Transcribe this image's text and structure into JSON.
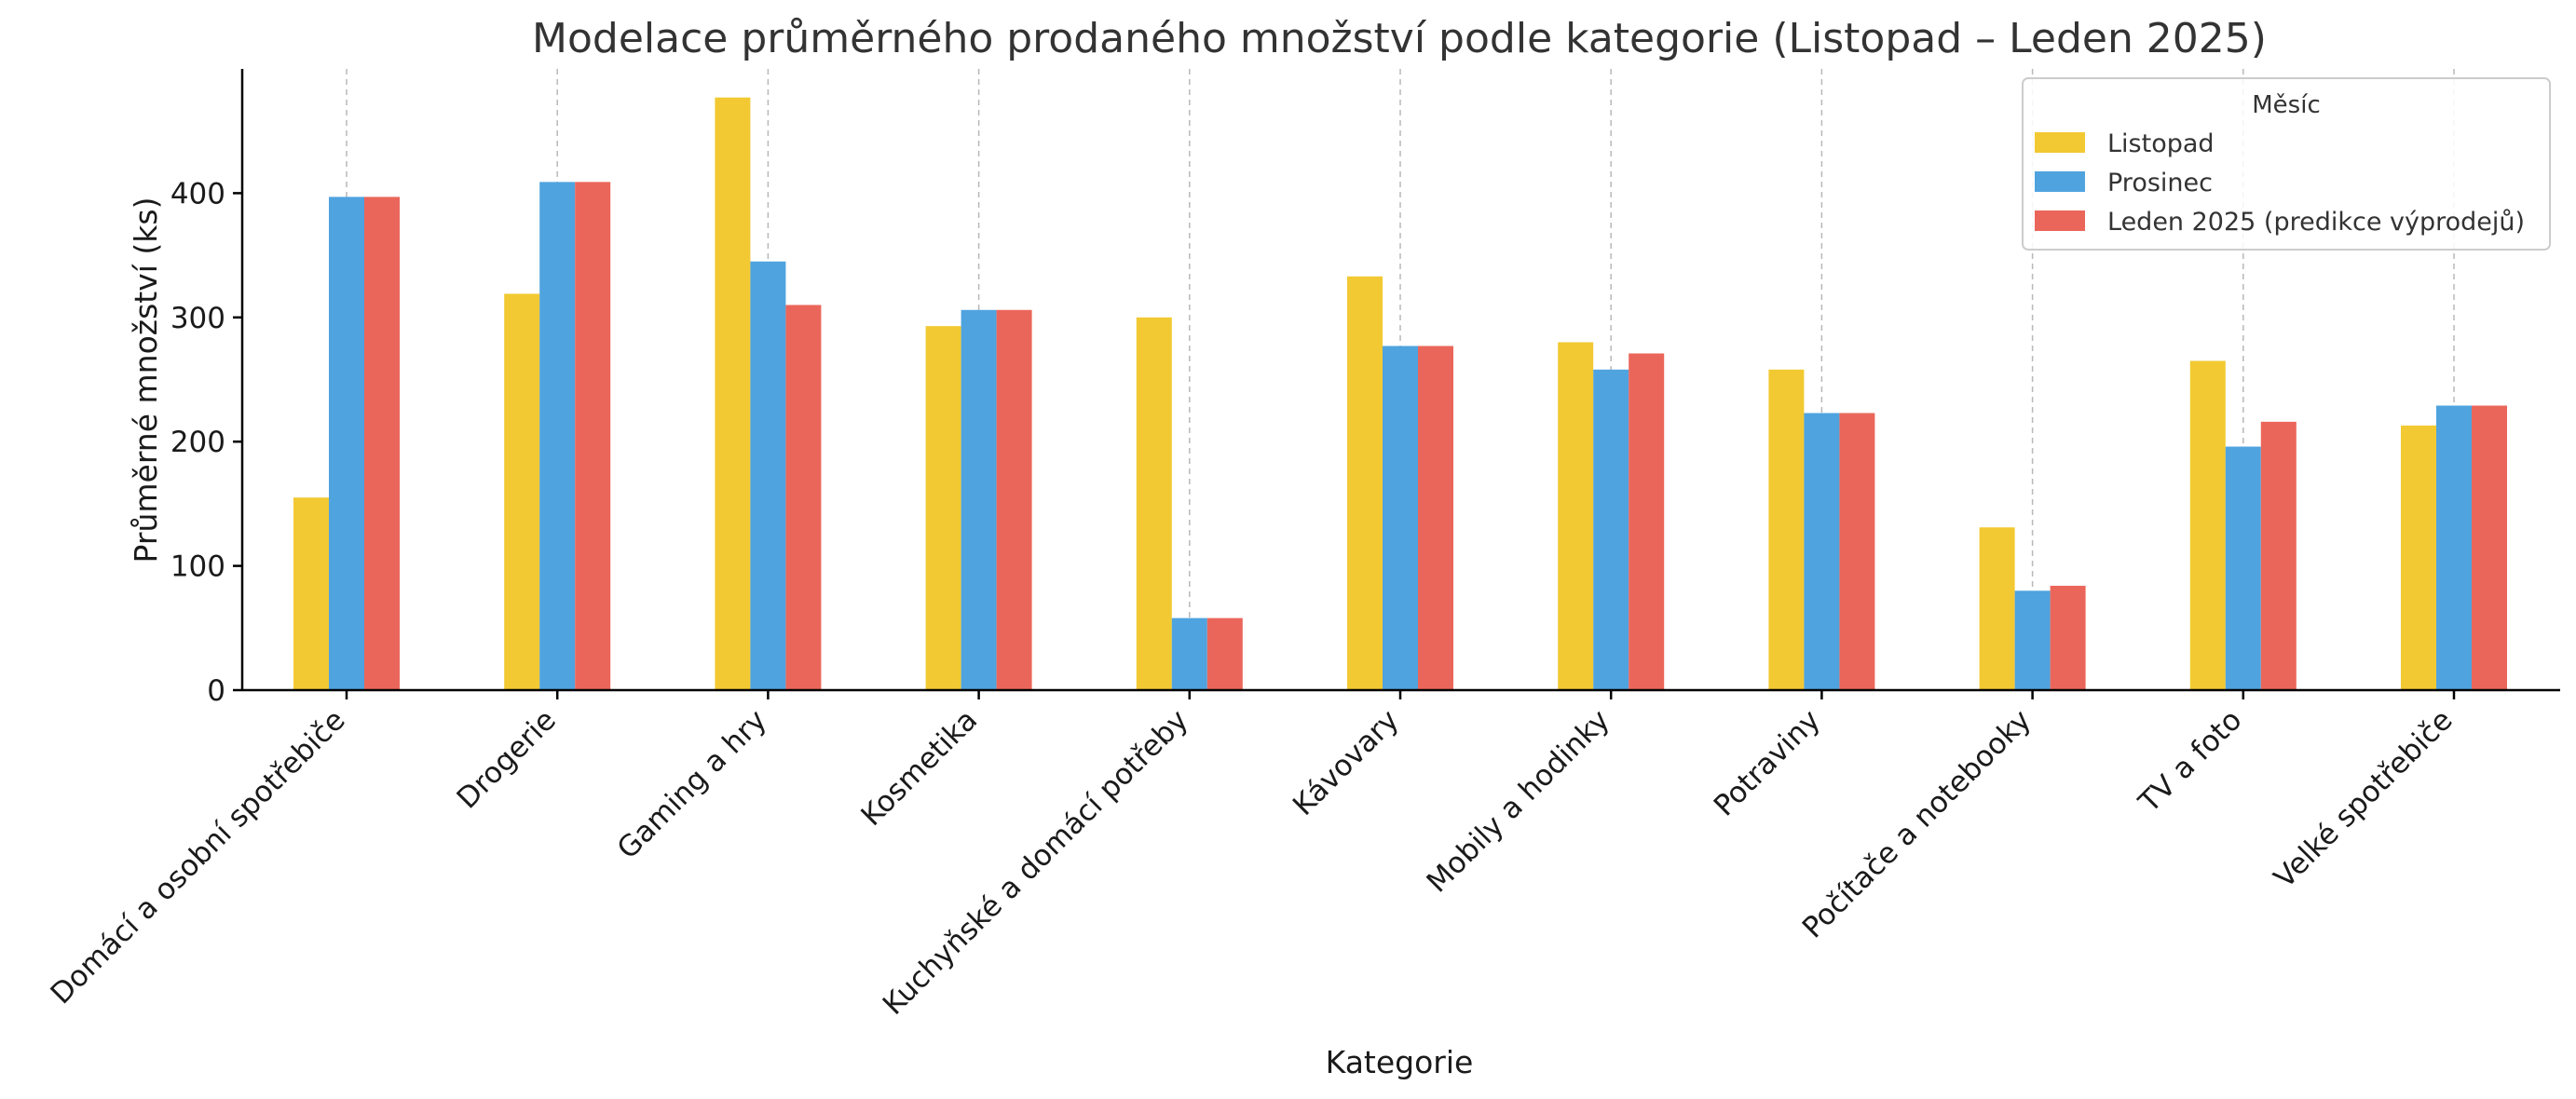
{
  "chart_data": {
    "type": "bar",
    "title": "Modelace průměrného prodaného množství podle kategorie (Listopad – Leden 2025)",
    "xlabel": "Kategorie",
    "ylabel": "Průměrné množství (ks)",
    "categories": [
      "Domácí a osobní spotřebiče",
      "Drogerie",
      "Gaming a hry",
      "Kosmetika",
      "Kuchyňské a domácí potřeby",
      "Kávovary",
      "Mobily a hodinky",
      "Potraviny",
      "Počítače a notebooky",
      "TV a foto",
      "Velké spotřebiče"
    ],
    "series": [
      {
        "name": "Listopad",
        "color": "#F2C932",
        "values": [
          155,
          319,
          477,
          293,
          300,
          333,
          280,
          258,
          131,
          265,
          213
        ]
      },
      {
        "name": "Prosinec",
        "color": "#4FA3DF",
        "values": [
          397,
          409,
          345,
          306,
          58,
          277,
          258,
          223,
          80,
          196,
          229
        ]
      },
      {
        "name": "Leden 2025 (predikce výprodejů)",
        "color": "#EB665A",
        "values": [
          397,
          409,
          310,
          306,
          58,
          277,
          271,
          223,
          84,
          216,
          229
        ]
      }
    ],
    "ylim": [
      0,
      500
    ],
    "yticks": [
      0,
      100,
      200,
      300,
      400
    ],
    "grid": "vertical dashed",
    "legend": {
      "title": "Měsíc",
      "position": "top-right"
    }
  }
}
